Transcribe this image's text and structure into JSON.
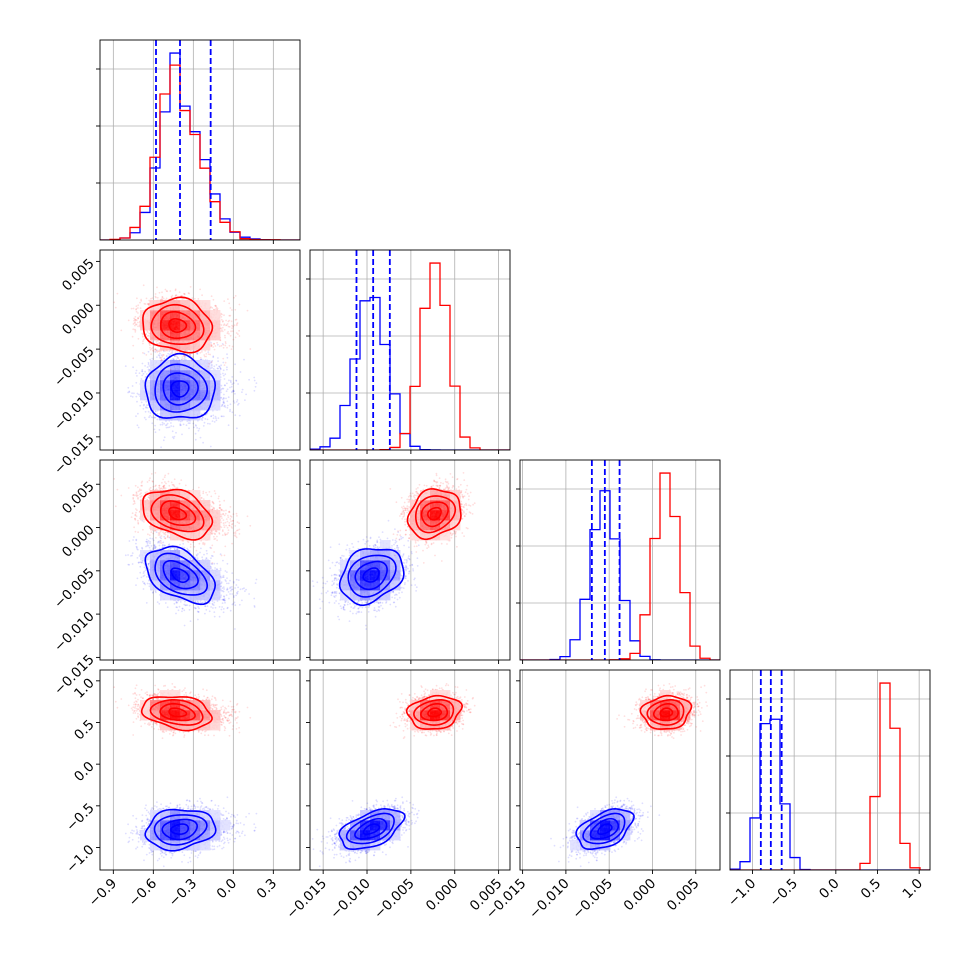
{
  "chart_data": {
    "type": "corner",
    "parameters": [
      "",
      "",
      "",
      ""
    ],
    "ranges": [
      [
        -1.0,
        0.5
      ],
      [
        -0.0165,
        0.0063
      ],
      [
        -0.0153,
        0.0078
      ],
      [
        -1.27,
        1.13
      ]
    ],
    "axes": {
      "x": [
        {
          "ticks": [
            -0.9,
            -0.6,
            -0.3,
            0.0,
            0.3
          ],
          "labels": [
            "−0.9",
            "−0.6",
            "−0.3",
            "0.0",
            "0.3"
          ]
        },
        {
          "ticks": [
            -0.015,
            -0.01,
            -0.005,
            0.0,
            0.005
          ],
          "labels": [
            "−0.015",
            "−0.010",
            "−0.005",
            "0.000",
            "0.005"
          ]
        },
        {
          "ticks": [
            -0.015,
            -0.01,
            -0.005,
            0.0,
            0.005
          ],
          "labels": [
            "−0.015",
            "−0.010",
            "−0.005",
            "0.000",
            "0.005"
          ]
        },
        {
          "ticks": [
            -1.0,
            -0.5,
            0.0,
            0.5,
            1.0
          ],
          "labels": [
            "−1.0",
            "−0.5",
            "0.0",
            "0.5",
            "1.0"
          ]
        }
      ],
      "y": [
        null,
        {
          "ticks": [
            0.005,
            0.0,
            -0.005,
            -0.01,
            -0.015
          ],
          "labels": [
            "0.005",
            "0.000",
            "−0.005",
            "−0.010",
            "−0.015"
          ]
        },
        {
          "ticks": [
            0.005,
            0.0,
            -0.005,
            -0.01,
            -0.015
          ],
          "labels": [
            "0.005",
            "0.000",
            "−0.005",
            "−0.010",
            "−0.015"
          ]
        },
        {
          "ticks": [
            1.0,
            0.5,
            0.0,
            -0.5,
            -1.0
          ],
          "labels": [
            "1.0",
            "0.5",
            "0.0",
            "−0.5",
            "−1.0"
          ]
        }
      ]
    },
    "series": [
      {
        "color": "#0000ff",
        "mean": [
          -0.4,
          -0.0095,
          -0.0055,
          -0.78
        ],
        "std": [
          0.13,
          0.0018,
          0.0016,
          0.12
        ],
        "quantiles": [
          [
            -0.58,
            -0.4,
            -0.17
          ],
          [
            -0.0112,
            -0.0093,
            -0.0074
          ],
          [
            -0.007,
            -0.0055,
            -0.0038
          ],
          [
            -0.9,
            -0.78,
            -0.65
          ]
        ]
      },
      {
        "color": "#ff0000",
        "mean": [
          -0.42,
          -0.0023,
          0.0016,
          0.62
        ],
        "std": [
          0.13,
          0.0015,
          0.0014,
          0.1
        ],
        "quantiles": null
      }
    ],
    "grid": true,
    "legend": "none"
  }
}
